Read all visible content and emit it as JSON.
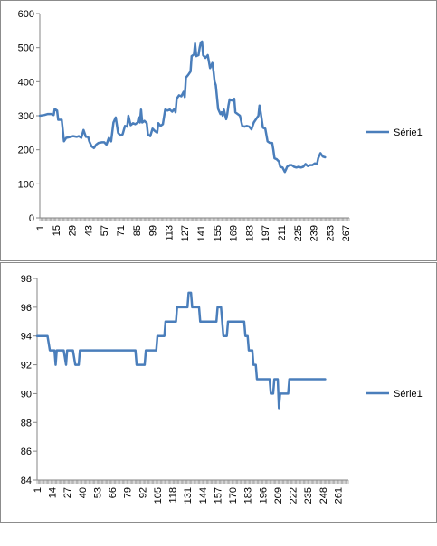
{
  "chart_data": [
    {
      "type": "line",
      "title": "",
      "xlabel": "",
      "ylabel": "",
      "ylim": [
        0,
        600
      ],
      "yticks": [
        0,
        100,
        200,
        300,
        400,
        500,
        600
      ],
      "xticks": [
        "1",
        "15",
        "29",
        "43",
        "57",
        "71",
        "85",
        "99",
        "113",
        "127",
        "141",
        "155",
        "169",
        "183",
        "197",
        "211",
        "225",
        "239",
        "253",
        "267"
      ],
      "x_range": [
        1,
        270
      ],
      "grid": false,
      "legend_position": "right",
      "series": [
        {
          "name": "Série1",
          "color": "#4a7ebb",
          "points": [
            [
              1,
              300
            ],
            [
              5,
              302
            ],
            [
              8,
              305
            ],
            [
              11,
              305
            ],
            [
              13,
              302
            ],
            [
              14,
              320
            ],
            [
              16,
              315
            ],
            [
              17,
              288
            ],
            [
              20,
              288
            ],
            [
              22,
              225
            ],
            [
              24,
              235
            ],
            [
              27,
              237
            ],
            [
              30,
              240
            ],
            [
              33,
              238
            ],
            [
              35,
              240
            ],
            [
              37,
              235
            ],
            [
              39,
              258
            ],
            [
              41,
              238
            ],
            [
              43,
              238
            ],
            [
              44,
              225
            ],
            [
              46,
              210
            ],
            [
              48,
              205
            ],
            [
              50,
              215
            ],
            [
              52,
              220
            ],
            [
              55,
              222
            ],
            [
              57,
              222
            ],
            [
              59,
              215
            ],
            [
              61,
              235
            ],
            [
              63,
              225
            ],
            [
              65,
              280
            ],
            [
              67,
              295
            ],
            [
              69,
              250
            ],
            [
              71,
              242
            ],
            [
              73,
              245
            ],
            [
              75,
              270
            ],
            [
              77,
              268
            ],
            [
              78,
              300
            ],
            [
              80,
              272
            ],
            [
              82,
              278
            ],
            [
              84,
              275
            ],
            [
              86,
              280
            ],
            [
              87,
              295
            ],
            [
              88,
              280
            ],
            [
              89,
              318
            ],
            [
              90,
              280
            ],
            [
              92,
              285
            ],
            [
              94,
              278
            ],
            [
              95,
              245
            ],
            [
              97,
              240
            ],
            [
              99,
              262
            ],
            [
              101,
              255
            ],
            [
              103,
              250
            ],
            [
              104,
              278
            ],
            [
              106,
              270
            ],
            [
              108,
              275
            ],
            [
              110,
              318
            ],
            [
              112,
              315
            ],
            [
              114,
              318
            ],
            [
              116,
              312
            ],
            [
              118,
              320
            ],
            [
              119,
              310
            ],
            [
              120,
              350
            ],
            [
              122,
              360
            ],
            [
              124,
              357
            ],
            [
              126,
              370
            ],
            [
              127,
              355
            ],
            [
              128,
              412
            ],
            [
              130,
              420
            ],
            [
              132,
              430
            ],
            [
              133,
              475
            ],
            [
              135,
              480
            ],
            [
              136,
              512
            ],
            [
              137,
              475
            ],
            [
              139,
              478
            ],
            [
              140,
              500
            ],
            [
              141,
              515
            ],
            [
              142,
              518
            ],
            [
              143,
              478
            ],
            [
              145,
              470
            ],
            [
              147,
              478
            ],
            [
              149,
              440
            ],
            [
              151,
              455
            ],
            [
              152,
              430
            ],
            [
              153,
              400
            ],
            [
              154,
              390
            ],
            [
              156,
              320
            ],
            [
              158,
              305
            ],
            [
              159,
              310
            ],
            [
              160,
              300
            ],
            [
              161,
              318
            ],
            [
              163,
              290
            ],
            [
              164,
              305
            ],
            [
              165,
              330
            ],
            [
              166,
              348
            ],
            [
              168,
              345
            ],
            [
              170,
              350
            ],
            [
              171,
              310
            ],
            [
              173,
              305
            ],
            [
              175,
              300
            ],
            [
              177,
              270
            ],
            [
              179,
              268
            ],
            [
              181,
              270
            ],
            [
              183,
              268
            ],
            [
              185,
              260
            ],
            [
              187,
              280
            ],
            [
              189,
              290
            ],
            [
              191,
              300
            ],
            [
              192,
              330
            ],
            [
              193,
              310
            ],
            [
              195,
              265
            ],
            [
              197,
              262
            ],
            [
              199,
              225
            ],
            [
              201,
              220
            ],
            [
              203,
              220
            ],
            [
              204,
              200
            ],
            [
              205,
              175
            ],
            [
              207,
              172
            ],
            [
              209,
              165
            ],
            [
              210,
              150
            ],
            [
              212,
              148
            ],
            [
              214,
              135
            ],
            [
              215,
              142
            ],
            [
              216,
              150
            ],
            [
              218,
              155
            ],
            [
              220,
              155
            ],
            [
              222,
              150
            ],
            [
              224,
              148
            ],
            [
              226,
              150
            ],
            [
              228,
              148
            ],
            [
              230,
              150
            ],
            [
              232,
              158
            ],
            [
              234,
              152
            ],
            [
              236,
              155
            ],
            [
              238,
              155
            ],
            [
              240,
              160
            ],
            [
              242,
              158
            ],
            [
              243,
              175
            ],
            [
              245,
              190
            ],
            [
              247,
              180
            ],
            [
              249,
              178
            ]
          ]
        }
      ]
    },
    {
      "type": "line",
      "title": "",
      "xlabel": "",
      "ylabel": "",
      "ylim": [
        84,
        98
      ],
      "yticks": [
        84,
        86,
        88,
        90,
        92,
        94,
        96,
        98
      ],
      "xticks": [
        "1",
        "14",
        "27",
        "40",
        "53",
        "66",
        "79",
        "92",
        "105",
        "118",
        "131",
        "144",
        "157",
        "170",
        "183",
        "196",
        "209",
        "222",
        "235",
        "248",
        "261"
      ],
      "x_range": [
        1,
        270
      ],
      "grid": false,
      "legend_position": "right",
      "series": [
        {
          "name": "Série1",
          "color": "#4a7ebb",
          "points": [
            [
              1,
              94
            ],
            [
              5,
              94
            ],
            [
              10,
              94
            ],
            [
              12,
              93
            ],
            [
              16,
              93
            ],
            [
              17,
              92
            ],
            [
              18,
              93
            ],
            [
              24,
              93
            ],
            [
              26,
              92
            ],
            [
              27,
              93
            ],
            [
              32,
              93
            ],
            [
              34,
              92
            ],
            [
              37,
              92
            ],
            [
              38,
              93
            ],
            [
              60,
              93
            ],
            [
              80,
              93
            ],
            [
              86,
              93
            ],
            [
              87,
              92
            ],
            [
              90,
              92
            ],
            [
              94,
              92
            ],
            [
              95,
              93
            ],
            [
              100,
              93
            ],
            [
              104,
              93
            ],
            [
              105,
              94
            ],
            [
              111,
              94
            ],
            [
              112,
              95
            ],
            [
              117,
              95
            ],
            [
              121,
              95
            ],
            [
              122,
              96
            ],
            [
              127,
              96
            ],
            [
              131,
              96
            ],
            [
              132,
              97
            ],
            [
              134,
              97
            ],
            [
              135,
              96
            ],
            [
              141,
              96
            ],
            [
              142,
              95
            ],
            [
              150,
              95
            ],
            [
              156,
              95
            ],
            [
              157,
              96
            ],
            [
              160,
              96
            ],
            [
              161,
              95
            ],
            [
              162,
              94
            ],
            [
              165,
              94
            ],
            [
              166,
              95
            ],
            [
              175,
              95
            ],
            [
              180,
              95
            ],
            [
              181,
              94
            ],
            [
              183,
              94
            ],
            [
              184,
              93
            ],
            [
              187,
              93
            ],
            [
              188,
              92
            ],
            [
              190,
              92
            ],
            [
              191,
              91
            ],
            [
              200,
              91
            ],
            [
              202,
              91
            ],
            [
              203,
              90
            ],
            [
              205,
              90
            ],
            [
              206,
              91
            ],
            [
              209,
              91
            ],
            [
              210,
              89
            ],
            [
              211,
              90
            ],
            [
              216,
              90
            ],
            [
              218,
              90
            ],
            [
              219,
              91
            ],
            [
              224,
              91
            ],
            [
              230,
              91
            ],
            [
              250,
              91
            ]
          ]
        }
      ]
    }
  ]
}
